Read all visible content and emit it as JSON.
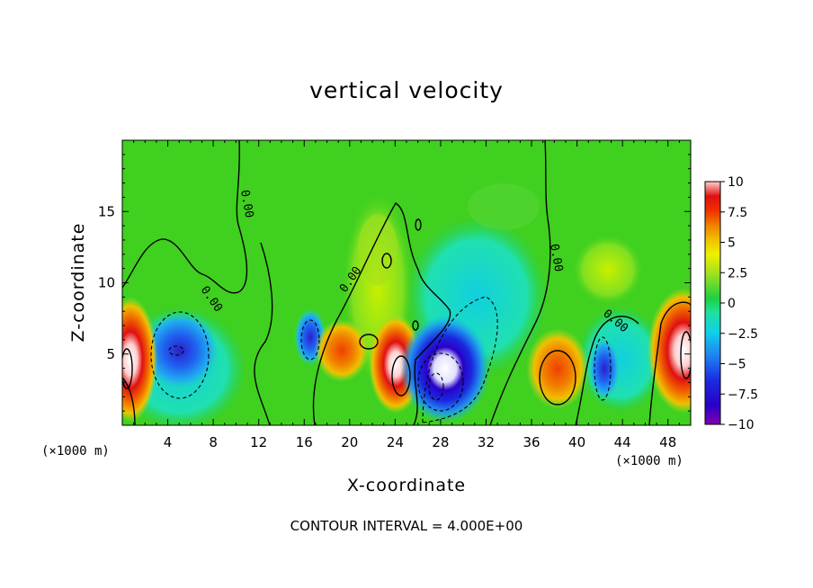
{
  "chart_data": {
    "type": "heatmap",
    "title": "vertical velocity",
    "xlabel": "X-coordinate",
    "ylabel": "Z-coordinate",
    "x_unit_left": "(×1000 m)",
    "x_unit_right": "(×1000 m)",
    "xlim": [
      0,
      50
    ],
    "ylim": [
      0,
      20
    ],
    "x_ticks": [
      "4",
      "8",
      "12",
      "16",
      "20",
      "24",
      "28",
      "32",
      "36",
      "40",
      "44",
      "48"
    ],
    "y_ticks": [
      "5",
      "10",
      "15"
    ],
    "colorbar": {
      "min": -10,
      "max": 10,
      "tick_labels": [
        "10",
        "7.5",
        "5",
        "2.5",
        "0",
        "-2.5",
        "-5",
        "-7.5",
        "-10"
      ],
      "colors": [
        "#7f00b0",
        "#2a00c8",
        "#1a2ae0",
        "#2060f0",
        "#2090f0",
        "#10c8e8",
        "#20e0a0",
        "#20d050",
        "#40d020",
        "#a0e020",
        "#e0f000",
        "#f0c000",
        "#f08000",
        "#f04000",
        "#e01010",
        "#f06060",
        "#ffd0d0"
      ]
    },
    "contour_label": "0.00",
    "features": [
      {
        "x": 0.5,
        "z": 4.0,
        "w": 14
      },
      {
        "x": 4.5,
        "z": 5.5,
        "w": -6
      },
      {
        "x": 16.0,
        "z": 5.5,
        "w": -9
      },
      {
        "x": 18.5,
        "z": 5.5,
        "w": 6
      },
      {
        "x": 23.5,
        "z": 3.5,
        "w": 12
      },
      {
        "x": 28.0,
        "z": 3.5,
        "w": -14
      },
      {
        "x": 38.5,
        "z": 4.0,
        "w": 6
      },
      {
        "x": 42.0,
        "z": 4.0,
        "w": -5
      },
      {
        "x": 48.5,
        "z": 5.0,
        "w": 12
      },
      {
        "x": 45.0,
        "z": 11.0,
        "w": 2.5
      }
    ],
    "footer": "CONTOUR INTERVAL = 4.000E+00"
  }
}
